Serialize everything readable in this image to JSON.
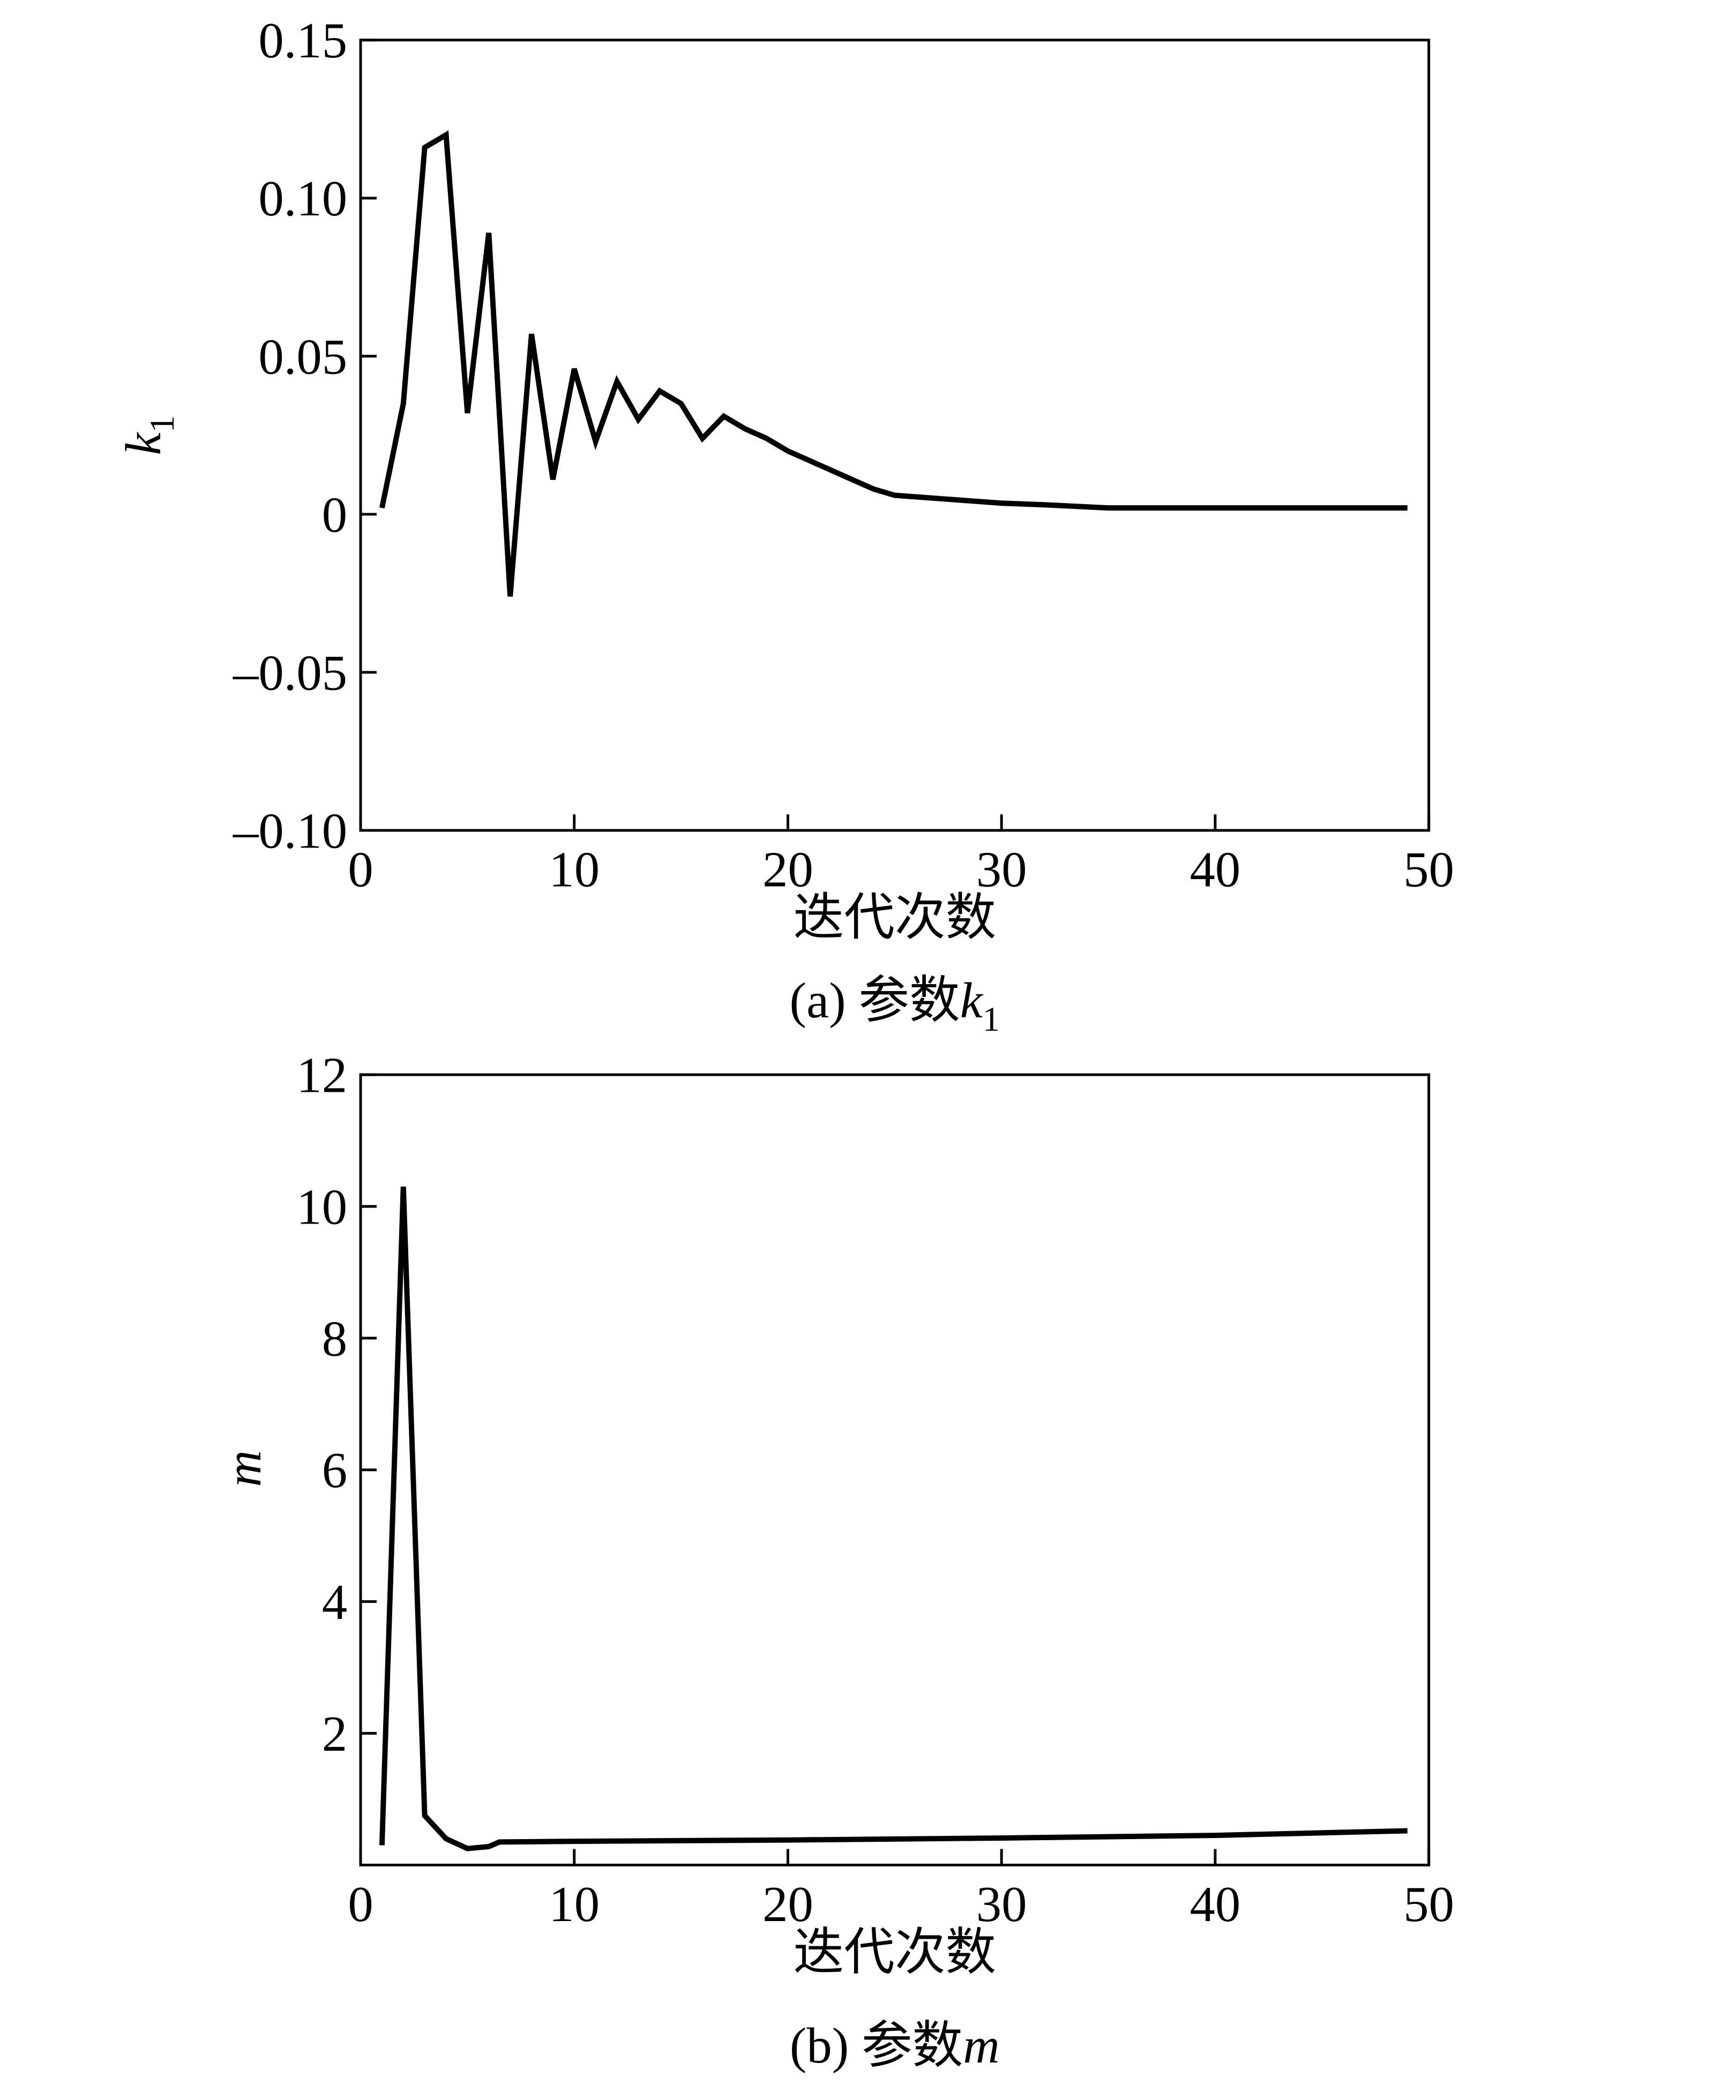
{
  "chart_data": [
    {
      "type": "line",
      "x_label": "迭代次数",
      "y_label": "k",
      "y_label_sub": "1",
      "caption": "(a)  参数",
      "caption_var": "k",
      "caption_sub": "1",
      "x": [
        1,
        2,
        3,
        4,
        5,
        6,
        7,
        8,
        9,
        10,
        11,
        12,
        13,
        14,
        15,
        16,
        17,
        18,
        19,
        20,
        21,
        22,
        23,
        24,
        25,
        26,
        27,
        28,
        29,
        30,
        32,
        35,
        40,
        45,
        49
      ],
      "series": [
        {
          "color": "#000000",
          "values": [
            0.002,
            0.035,
            0.116,
            0.12,
            0.032,
            0.089,
            -0.026,
            0.057,
            0.011,
            0.046,
            0.023,
            0.042,
            0.03,
            0.039,
            0.035,
            0.024,
            0.031,
            0.027,
            0.024,
            0.02,
            0.017,
            0.014,
            0.011,
            0.008,
            0.006,
            0.0055,
            0.005,
            0.0045,
            0.004,
            0.0035,
            0.003,
            0.002,
            0.002,
            0.002,
            0.002
          ]
        }
      ],
      "xlim": [
        0,
        50
      ],
      "xticks": [
        0,
        10,
        20,
        30,
        40,
        50
      ],
      "ylim": [
        -0.1,
        0.15
      ],
      "yticks": [
        {
          "value": -0.1,
          "label": "–0.10"
        },
        {
          "value": -0.05,
          "label": "–0.05"
        },
        0,
        0.05,
        {
          "value": 0.1,
          "label": "0.10"
        },
        0.15
      ]
    },
    {
      "type": "line",
      "x_label": "迭代次数",
      "y_label": "m",
      "caption": "(b) 参数",
      "caption_var": "m",
      "x": [
        1,
        2,
        3,
        4,
        5,
        6,
        6.5,
        10,
        20,
        30,
        40,
        49
      ],
      "series": [
        {
          "color": "#000000",
          "values": [
            0.3,
            10.3,
            0.75,
            0.4,
            0.25,
            0.28,
            0.35,
            0.36,
            0.38,
            0.41,
            0.45,
            0.52
          ]
        }
      ],
      "xlim": [
        0,
        50
      ],
      "xticks": [
        0,
        10,
        20,
        30,
        40,
        50
      ],
      "ylim": [
        0,
        12
      ],
      "yticks": [
        2,
        4,
        6,
        8,
        10,
        12
      ]
    }
  ]
}
